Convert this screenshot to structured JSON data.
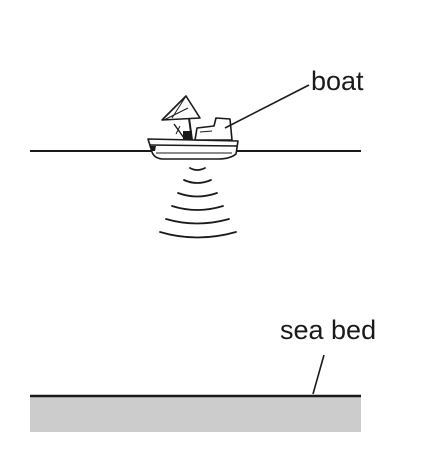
{
  "labels": {
    "boat": "boat",
    "sea_bed": "sea bed"
  },
  "colors": {
    "ink": "#1a1a1a",
    "sea_bed_fill": "#cccccc",
    "background": "#ffffff"
  }
}
